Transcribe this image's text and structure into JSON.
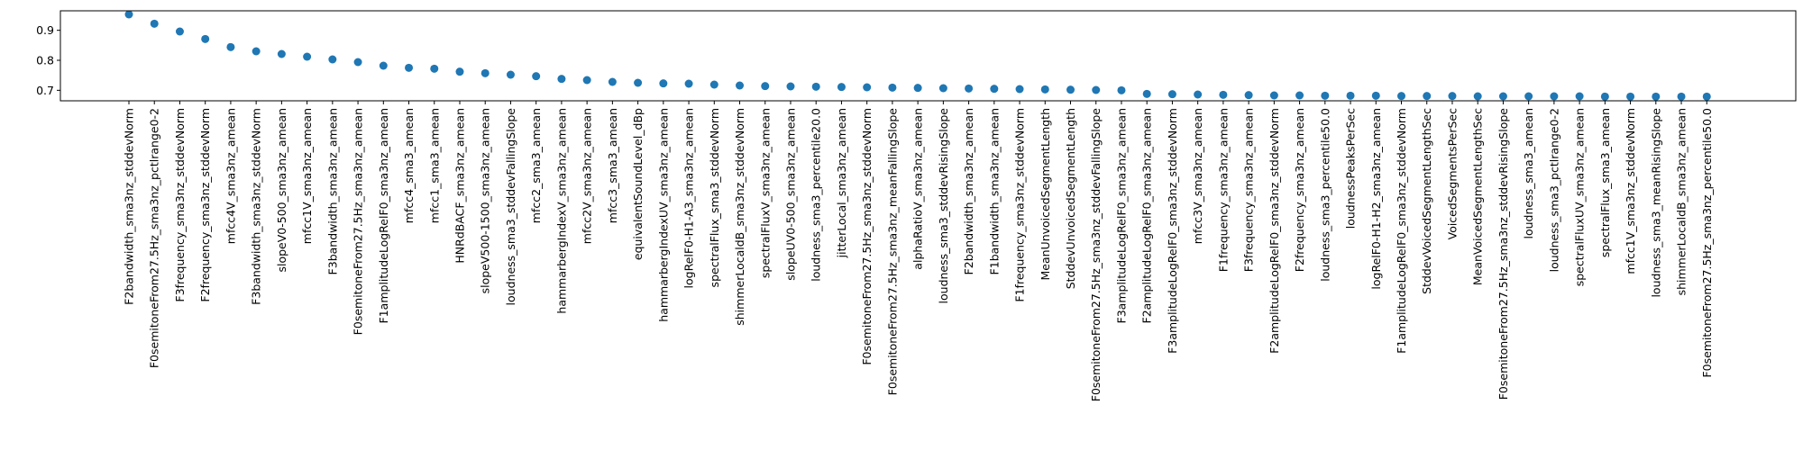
{
  "chart_data": {
    "type": "scatter",
    "title": "",
    "xlabel": "",
    "ylabel": "",
    "ylim": [
      0.665,
      0.965
    ],
    "yticks": [
      "0.7",
      "0.8",
      "0.9"
    ],
    "ytick_values": [
      0.7,
      0.8,
      0.9
    ],
    "grid": false,
    "marker_color": "#1f77b4",
    "categories": [
      "F2bandwidth_sma3nz_stddevNorm",
      "F0semitoneFrom27.5Hz_sma3nz_pctlrange0-2",
      "F3frequency_sma3nz_stddevNorm",
      "F2frequency_sma3nz_stddevNorm",
      "mfcc4V_sma3nz_amean",
      "F3bandwidth_sma3nz_stddevNorm",
      "slopeV0-500_sma3nz_amean",
      "mfcc1V_sma3nz_amean",
      "F3bandwidth_sma3nz_amean",
      "F0semitoneFrom27.5Hz_sma3nz_amean",
      "F1amplitudeLogRelF0_sma3nz_amean",
      "mfcc4_sma3_amean",
      "mfcc1_sma3_amean",
      "HNRdBACF_sma3nz_amean",
      "slopeV500-1500_sma3nz_amean",
      "loudness_sma3_stddevFallingSlope",
      "mfcc2_sma3_amean",
      "hammarbergIndexV_sma3nz_amean",
      "mfcc2V_sma3nz_amean",
      "mfcc3_sma3_amean",
      "equivalentSoundLevel_dBp",
      "hammarbergIndexUV_sma3nz_amean",
      "logRelF0-H1-A3_sma3nz_amean",
      "spectralFlux_sma3_stddevNorm",
      "shimmerLocaldB_sma3nz_stddevNorm",
      "spectralFluxV_sma3nz_amean",
      "slopeUV0-500_sma3nz_amean",
      "loudness_sma3_percentile20.0",
      "jitterLocal_sma3nz_amean",
      "F0semitoneFrom27.5Hz_sma3nz_stddevNorm",
      "F0semitoneFrom27.5Hz_sma3nz_meanFallingSlope",
      "alphaRatioV_sma3nz_amean",
      "loudness_sma3_stddevRisingSlope",
      "F2bandwidth_sma3nz_amean",
      "F1bandwidth_sma3nz_amean",
      "F1frequency_sma3nz_stddevNorm",
      "MeanUnvoicedSegmentLength",
      "StddevUnvoicedSegmentLength",
      "F0semitoneFrom27.5Hz_sma3nz_stddevFallingSlope",
      "F3amplitudeLogRelF0_sma3nz_amean",
      "F2amplitudeLogRelF0_sma3nz_amean",
      "F3amplitudeLogRelF0_sma3nz_stddevNorm",
      "mfcc3V_sma3nz_amean",
      "F1frequency_sma3nz_amean",
      "F3frequency_sma3nz_amean",
      "F2amplitudeLogRelF0_sma3nz_stddevNorm",
      "F2frequency_sma3nz_amean",
      "loudness_sma3_percentile50.0",
      "loudnessPeaksPerSec",
      "logRelF0-H1-H2_sma3nz_amean",
      "F1amplitudeLogRelF0_sma3nz_stddevNorm",
      "StddevVoicedSegmentLengthSec",
      "VoicedSegmentsPerSec",
      "MeanVoicedSegmentLengthSec",
      "F0semitoneFrom27.5Hz_sma3nz_stddevRisingSlope",
      "loudness_sma3_amean",
      "loudness_sma3_pctlrange0-2",
      "spectralFluxUV_sma3nz_amean",
      "spectralFlux_sma3_amean",
      "mfcc1V_sma3nz_stddevNorm",
      "loudness_sma3_meanRisingSlope",
      "shimmerLocaldB_sma3nz_amean",
      "F0semitoneFrom27.5Hz_sma3nz_percentile50.0"
    ],
    "values": [
      0.953,
      0.922,
      0.896,
      0.871,
      0.844,
      0.83,
      0.821,
      0.812,
      0.803,
      0.794,
      0.782,
      0.775,
      0.772,
      0.762,
      0.757,
      0.752,
      0.747,
      0.738,
      0.734,
      0.728,
      0.725,
      0.723,
      0.722,
      0.719,
      0.716,
      0.714,
      0.713,
      0.712,
      0.711,
      0.71,
      0.709,
      0.708,
      0.707,
      0.706,
      0.705,
      0.704,
      0.703,
      0.702,
      0.701,
      0.7,
      0.688,
      0.687,
      0.686,
      0.685,
      0.684,
      0.683,
      0.683,
      0.682,
      0.682,
      0.682,
      0.681,
      0.681,
      0.681,
      0.68,
      0.68,
      0.68,
      0.68,
      0.68,
      0.679,
      0.679,
      0.679,
      0.679,
      0.679
    ]
  }
}
